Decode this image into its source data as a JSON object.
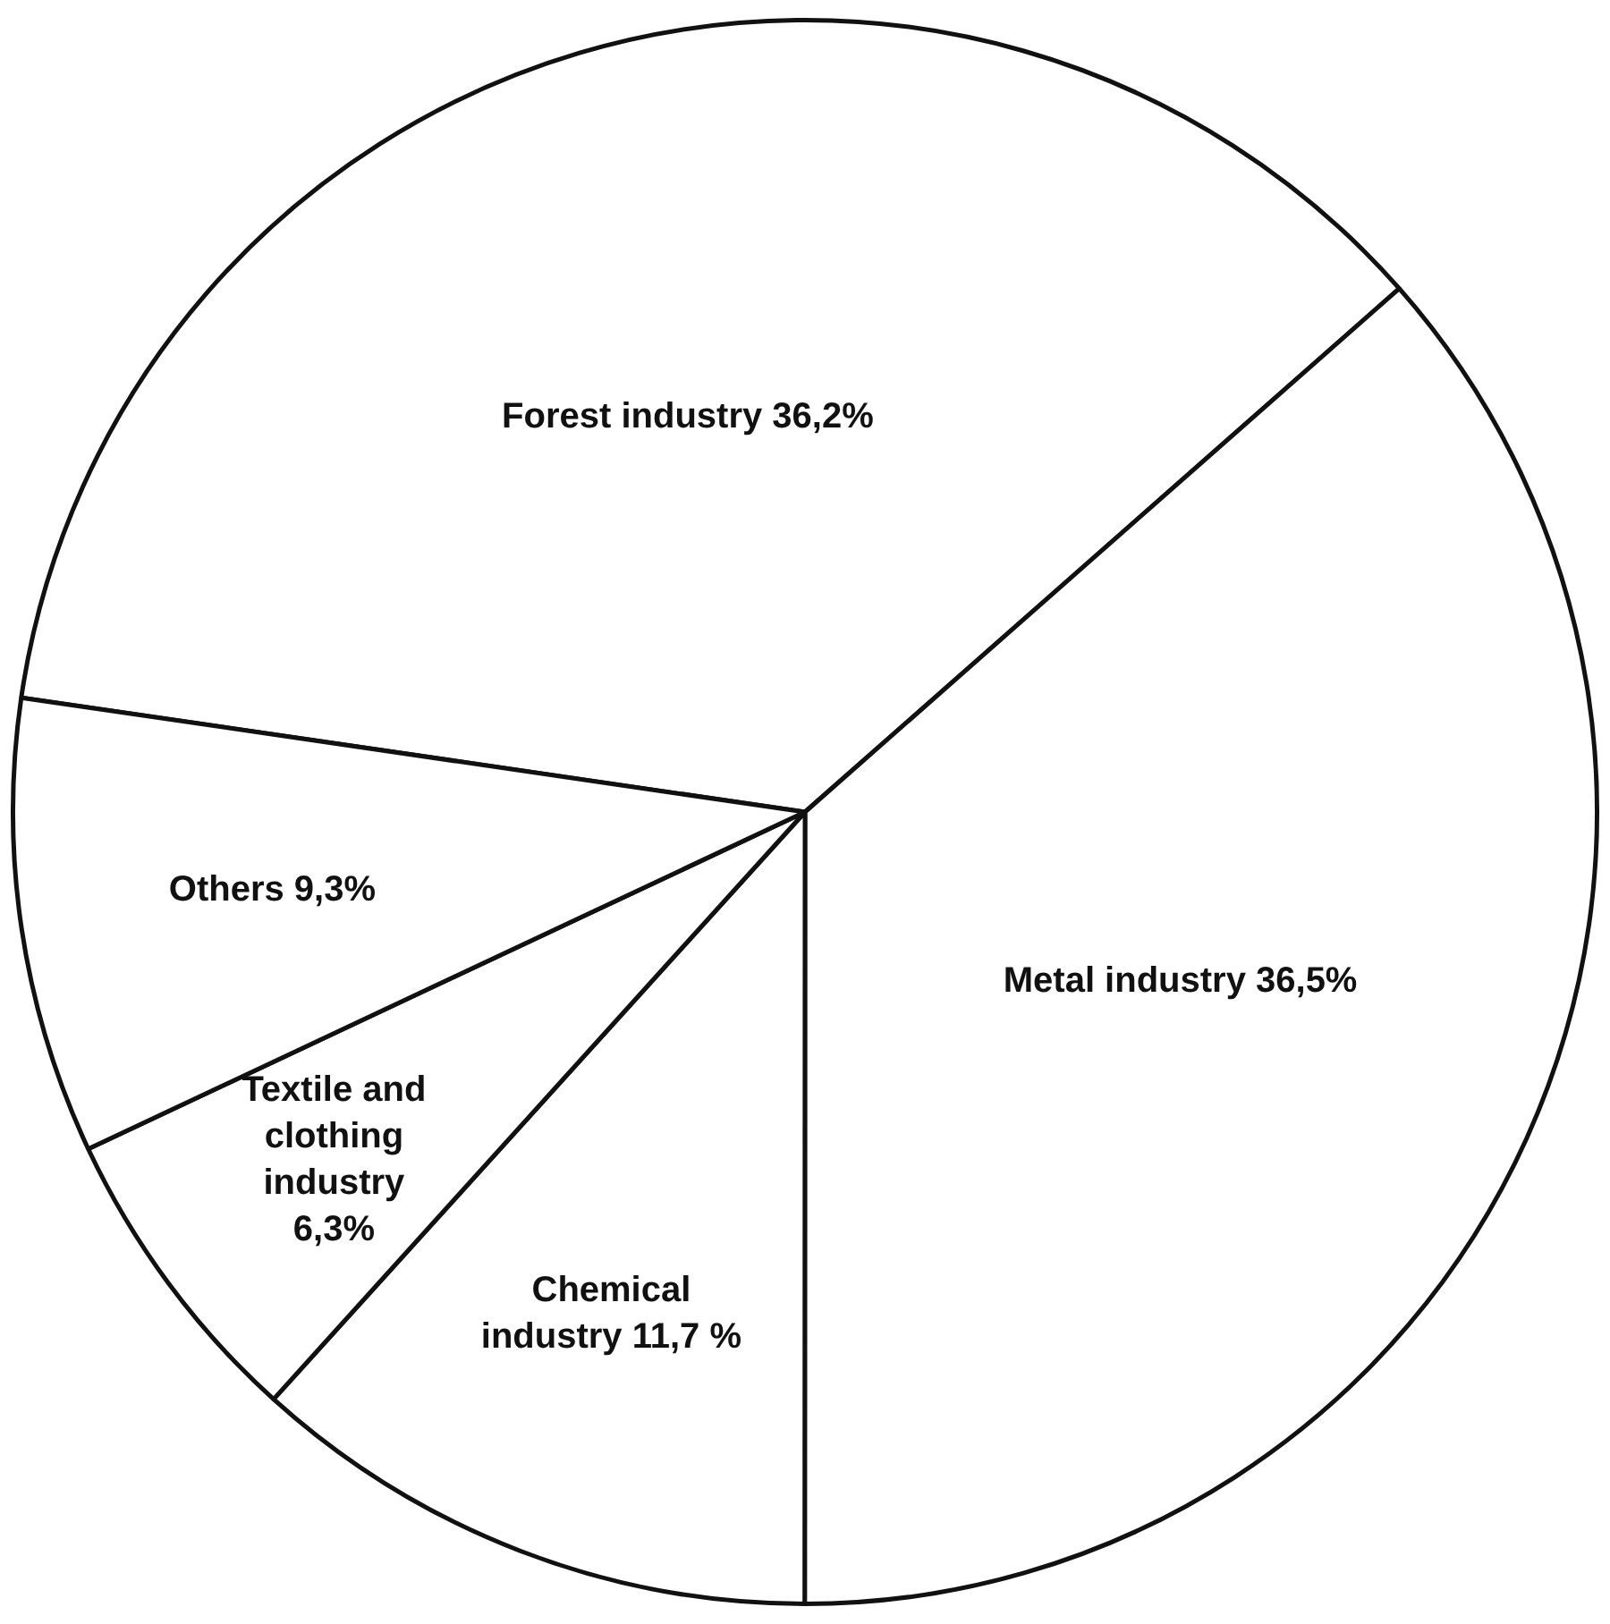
{
  "chart_data": {
    "type": "pie",
    "categories": [
      "Forest industry",
      "Metal industry",
      "Chemical industry",
      "Textile and clothing industry",
      "Others"
    ],
    "values": [
      36.2,
      36.5,
      11.7,
      6.3,
      9.3
    ],
    "colors": [
      "#ffffff",
      "#ffffff",
      "#ffffff",
      "#ffffff",
      "#ffffff"
    ],
    "value_labels": [
      "36,2%",
      "36,5%",
      "11,7 %",
      "6,3%",
      "9,3%"
    ],
    "legend": false
  }
}
